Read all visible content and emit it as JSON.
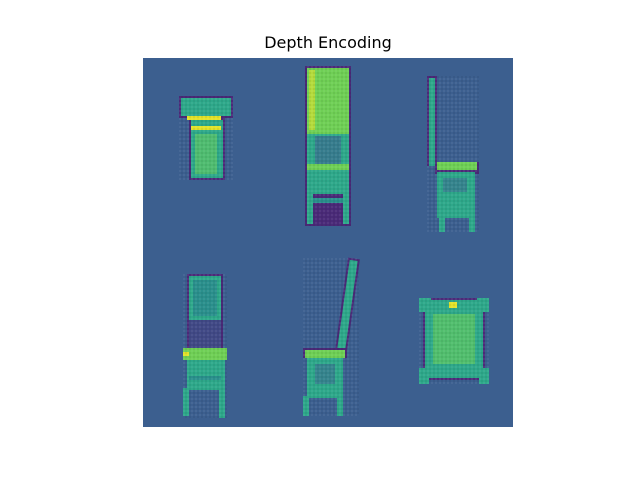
{
  "figure": {
    "title": "Depth Encoding"
  },
  "image": {
    "colormap": "viridis",
    "background_color": "#3c5f8f",
    "outline_color": "#4a2a78",
    "body_color": "#2ea88a",
    "mid_color": "#2a8f8c",
    "highlight_color": "#6fcf55",
    "peak_color": "#e2e22a",
    "objects": [
      {
        "label": "chair-front-view"
      },
      {
        "label": "chair-tall-back-front-view"
      },
      {
        "label": "chair-side-view-right"
      },
      {
        "label": "chair-three-quarter-view"
      },
      {
        "label": "chair-side-view-left"
      },
      {
        "label": "chair-top-down-view"
      }
    ]
  }
}
